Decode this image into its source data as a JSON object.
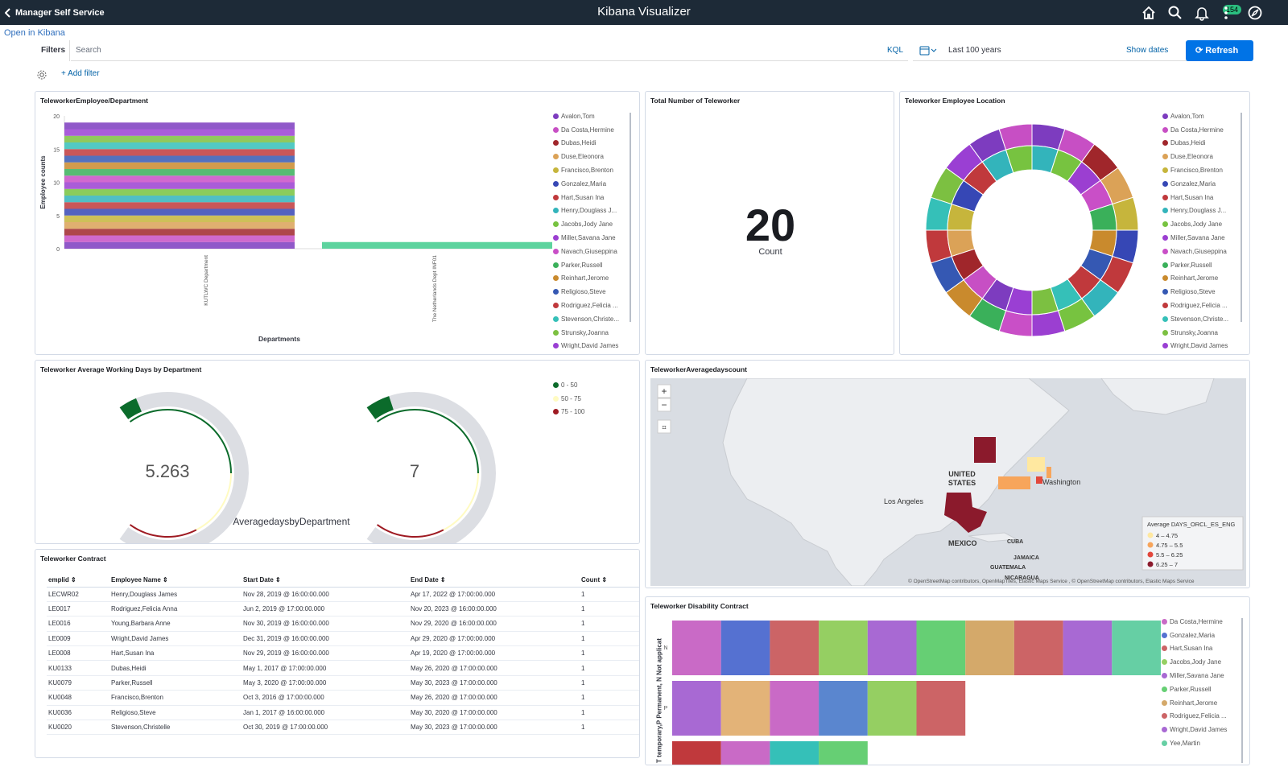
{
  "topbar": {
    "back_label": "Manager Self Service",
    "title": "Kibana Visualizer",
    "notif_count": "154"
  },
  "open_link": "Open in Kibana",
  "filterbar": {
    "filters": "Filters",
    "search_placeholder": "Search",
    "kql": "KQL",
    "range": "Last 100 years",
    "show_dates": "Show dates",
    "refresh": "Refresh",
    "add_filter": "+ Add filter"
  },
  "panels": {
    "dept": {
      "title": "TeleworkerEmployee/Department",
      "ylabel": "Employee counts",
      "xlabel": "Departments",
      "yticks": [
        "20",
        "15",
        "10",
        "5",
        "0"
      ]
    },
    "total": {
      "title": "Total Number of Teleworker",
      "value": "20",
      "sub": "Count"
    },
    "location": {
      "title": "Teleworker Employee Location"
    },
    "gauge": {
      "title": "Teleworker Average Working Days by Department",
      "caption": "AveragedaysbyDepartment"
    },
    "map": {
      "title": "TeleworkerAveragedayscount",
      "attribution": "© OpenStreetMap contributors, OpenMapTiles, Elastic Maps Service , © OpenStreetMap contributors, Elastic Maps Service",
      "legend_title": "Average DAYS_ORCL_ES_ENG"
    },
    "contract": {
      "title": "Teleworker Contract"
    },
    "disability": {
      "title": "Teleworker Disability Contract",
      "ylabel": "T temporary,P Permanent, N Not applicat",
      "cat_n": "N",
      "cat_p": "P"
    }
  },
  "employee_legend": [
    {
      "name": "Avalon,Tom",
      "color": "#7d3cbf"
    },
    {
      "name": "Da Costa,Hermine",
      "color": "#c74fc4"
    },
    {
      "name": "Dubas,Heidi",
      "color": "#a0262b"
    },
    {
      "name": "Duse,Eleonora",
      "color": "#dba257"
    },
    {
      "name": "Francisco,Brenton",
      "color": "#c6b53c"
    },
    {
      "name": "Gonzalez,Maria",
      "color": "#3647b5"
    },
    {
      "name": "Hart,Susan Ina",
      "color": "#c0393c"
    },
    {
      "name": "Henry,Douglass J...",
      "color": "#33b4bb"
    },
    {
      "name": "Jacobs,Jody Jane",
      "color": "#77c340"
    },
    {
      "name": "Miller,Savana Jane",
      "color": "#9b3fd1"
    },
    {
      "name": "Navach,Giuseppina",
      "color": "#c94fc7"
    },
    {
      "name": "Parker,Russell",
      "color": "#3ab05a"
    },
    {
      "name": "Reinhart,Jerome",
      "color": "#c98a2d"
    },
    {
      "name": "Religioso,Steve",
      "color": "#3558b3"
    },
    {
      "name": "Rodriguez,Felicia ...",
      "color": "#c0393c"
    },
    {
      "name": "Stevenson,Christe...",
      "color": "#35c0b8"
    },
    {
      "name": "Strunsky,Joanna",
      "color": "#7cc041"
    },
    {
      "name": "Wright,David James",
      "color": "#9a3fd3"
    }
  ],
  "chart_data": [
    {
      "type": "bar",
      "title": "TeleworkerEmployee/Department",
      "xlabel": "Departments",
      "ylabel": "Employee counts",
      "categories": [
        "KUTLWC Department",
        "The Netherlands Dept INF01"
      ],
      "values": [
        19,
        1
      ],
      "ylim": [
        0,
        20
      ]
    },
    {
      "type": "pie",
      "title": "Teleworker Employee Location",
      "donut": true
    },
    {
      "type": "gauge",
      "title": "Teleworker Average Working Days by Department",
      "values": [
        5.263,
        7
      ],
      "value_labels": [
        "5.263",
        "7"
      ],
      "range": [
        0,
        100
      ],
      "bands": [
        {
          "label": "0 - 50",
          "color": "#0b6b2b"
        },
        {
          "label": "50 - 75",
          "color": "#fffbc2"
        },
        {
          "label": "75 - 100",
          "color": "#9e1a22"
        }
      ]
    },
    {
      "type": "bar",
      "title": "Teleworker Disability Contract",
      "orientation": "horizontal",
      "categories": [
        "N",
        "P"
      ],
      "series_counts": [
        10,
        6
      ]
    }
  ],
  "disability_legend": [
    {
      "name": "Da Costa,Hermine",
      "color": "#c96ac6"
    },
    {
      "name": "Gonzalez,Maria",
      "color": "#5571d1"
    },
    {
      "name": "Hart,Susan Ina",
      "color": "#cc6466"
    },
    {
      "name": "Jacobs,Jody Jane",
      "color": "#95cf62"
    },
    {
      "name": "Miller,Savana Jane",
      "color": "#a869d3"
    },
    {
      "name": "Parker,Russell",
      "color": "#66cf74"
    },
    {
      "name": "Reinhart,Jerome",
      "color": "#d4a96a"
    },
    {
      "name": "Rodriguez,Felicia ...",
      "color": "#cc6466"
    },
    {
      "name": "Wright,David James",
      "color": "#a869d3"
    },
    {
      "name": "Yee,Martin",
      "color": "#66cfa4"
    }
  ],
  "map_legend": [
    {
      "label": "4 – 4.75",
      "color": "#ffe8a0"
    },
    {
      "label": "4.75 – 5.5",
      "color": "#f7a55b"
    },
    {
      "label": "5.5 – 6.25",
      "color": "#e2473b"
    },
    {
      "label": "6.25 – 7",
      "color": "#8b1a2c"
    }
  ],
  "map_labels": {
    "us": "UNITED",
    "us2": "STATES",
    "mexico": "MEXICO",
    "cuba": "CUBA",
    "jamaica": "JAMAICA",
    "guatemala": "GUATEMALA",
    "nicaragua": "NICARAGUA",
    "la": "Los Angeles",
    "dc": "Washington"
  },
  "table": {
    "columns": [
      "emplid",
      "Employee Name",
      "Start Date",
      "End Date",
      "Count"
    ],
    "rows": [
      [
        "LECWR02",
        "Henry,Douglass James",
        "Nov 28, 2019 @ 16:00:00.000",
        "Apr 17, 2022 @ 17:00:00.000",
        "1"
      ],
      [
        "LE0017",
        "Rodriguez,Felicia Anna",
        "Jun 2, 2019 @ 17:00:00.000",
        "Nov 20, 2023 @ 16:00:00.000",
        "1"
      ],
      [
        "LE0016",
        "Young,Barbara Anne",
        "Nov 30, 2019 @ 16:00:00.000",
        "Nov 29, 2020 @ 16:00:00.000",
        "1"
      ],
      [
        "LE0009",
        "Wright,David James",
        "Dec 31, 2019 @ 16:00:00.000",
        "Apr 29, 2020 @ 17:00:00.000",
        "1"
      ],
      [
        "LE0008",
        "Hart,Susan Ina",
        "Nov 29, 2019 @ 16:00:00.000",
        "Apr 19, 2020 @ 17:00:00.000",
        "1"
      ],
      [
        "KU0133",
        "Dubas,Heidi",
        "May 1, 2017 @ 17:00:00.000",
        "May 26, 2020 @ 17:00:00.000",
        "1"
      ],
      [
        "KU0079",
        "Parker,Russell",
        "May 3, 2020 @ 17:00:00.000",
        "May 30, 2023 @ 17:00:00.000",
        "1"
      ],
      [
        "KU0048",
        "Francisco,Brenton",
        "Oct 3, 2016 @ 17:00:00.000",
        "May 26, 2020 @ 17:00:00.000",
        "1"
      ],
      [
        "KU0036",
        "Religioso,Steve",
        "Jan 1, 2017 @ 16:00:00.000",
        "May 30, 2020 @ 17:00:00.000",
        "1"
      ],
      [
        "KU0020",
        "Stevenson,Christelle",
        "Oct 30, 2019 @ 17:00:00.000",
        "May 30, 2023 @ 17:00:00.000",
        "1"
      ]
    ]
  }
}
